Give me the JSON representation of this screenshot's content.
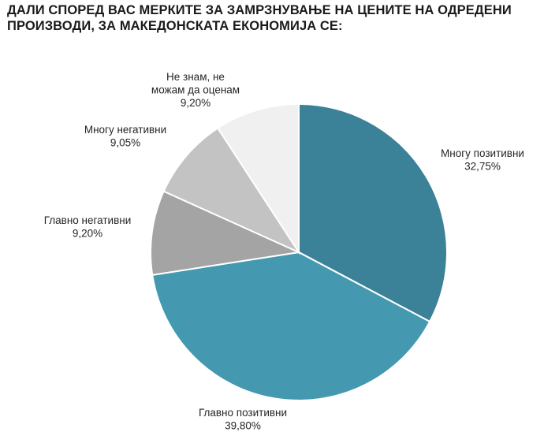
{
  "chart_data": {
    "type": "pie",
    "title": "ДАЛИ СПОРЕД ВАС МЕРКИТЕ ЗА ЗАМРЗНУВАЊЕ НА ЦЕНИТЕ НА ОДРЕДЕНИ ПРОИЗВОДИ, ЗА МАКЕДОНСКАТА ЕКОНОМИЈА СЕ:",
    "slices": [
      {
        "label": "Многу позитивни",
        "value": 32.75,
        "value_label": "32,75%",
        "color": "#3b8197"
      },
      {
        "label": "Главно позитивни",
        "value": 39.8,
        "value_label": "39,80%",
        "color": "#4499b0"
      },
      {
        "label": "Главно негативни",
        "value": 9.2,
        "value_label": "9,20%",
        "color": "#a4a4a4"
      },
      {
        "label": "Многу негативни",
        "value": 9.05,
        "value_label": "9,05%",
        "color": "#c3c3c3"
      },
      {
        "label": "Не знам, не можам да оценам",
        "value": 9.2,
        "value_label": "9,20%",
        "color": "#f0f0f0"
      }
    ],
    "start": "12 o'clock",
    "direction": "clockwise",
    "legend": "none (data labels)"
  }
}
